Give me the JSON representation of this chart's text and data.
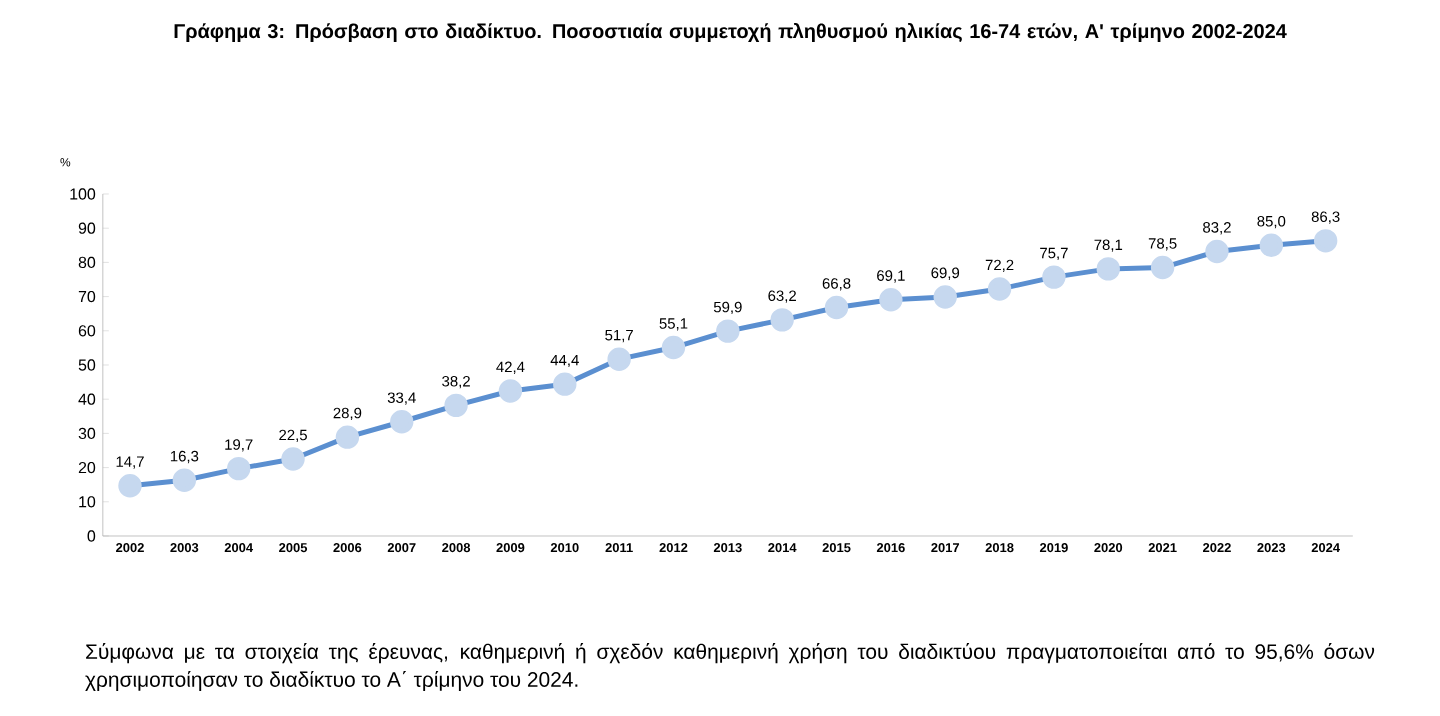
{
  "chart_data": {
    "type": "line",
    "title": "Γράφημα 3: Πρόσβαση στο διαδίκτυο. Ποσοστιαία συμμετοχή πληθυσμού ηλικίας 16-74 ετών, Α' τρίμηνο 2002-2024",
    "ylabel": "%",
    "categories": [
      "2002",
      "2003",
      "2004",
      "2005",
      "2006",
      "2007",
      "2008",
      "2009",
      "2010",
      "2011",
      "2012",
      "2013",
      "2014",
      "2015",
      "2016",
      "2017",
      "2018",
      "2019",
      "2020",
      "2021",
      "2022",
      "2023",
      "2024"
    ],
    "values": [
      14.7,
      16.3,
      19.7,
      22.5,
      28.9,
      33.4,
      38.2,
      42.4,
      44.4,
      51.7,
      55.1,
      59.9,
      63.2,
      66.8,
      69.1,
      69.9,
      72.2,
      75.7,
      78.1,
      78.5,
      83.2,
      85.0,
      86.3
    ],
    "value_labels": [
      "14,7",
      "16,3",
      "19,7",
      "22,5",
      "28,9",
      "33,4",
      "38,2",
      "42,4",
      "44,4",
      "51,7",
      "55,1",
      "59,9",
      "63,2",
      "66,8",
      "69,1",
      "69,9",
      "72,2",
      "75,7",
      "78,1",
      "78,5",
      "83,2",
      "85,0",
      "86,3"
    ],
    "color": "#5b8fd0",
    "marker": "circle",
    "ylim": [
      0,
      100
    ],
    "yticks": [
      0,
      10,
      20,
      30,
      40,
      50,
      60,
      70,
      80,
      90,
      100
    ],
    "annotations": [
      "Σύμφωνα με τα στοιχεία της έρευνας, καθημερινή ή σχεδόν καθημερινή χρήση του διαδικτύου πραγματοποιείται από το 95,6% όσων χρησιμοποίησαν το διαδίκτυο το Α΄ τρίμηνο του 2024."
    ]
  }
}
